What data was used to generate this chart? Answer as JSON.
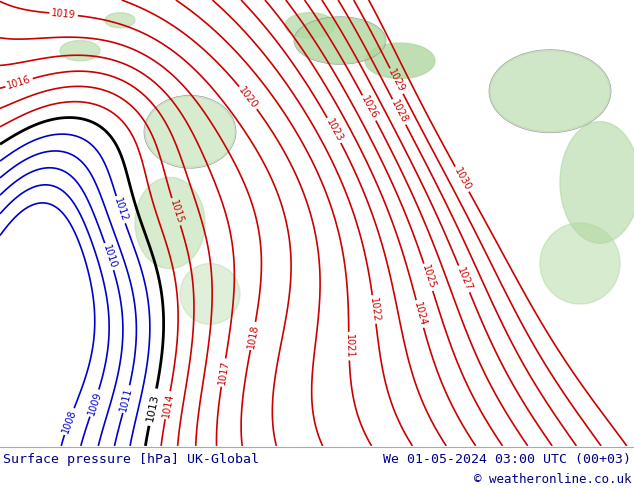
{
  "title_left": "Surface pressure [hPa] UK-Global",
  "title_right": "We 01-05-2024 03:00 UTC (00+03)",
  "copyright": "© weatheronline.co.uk",
  "bg_color": "#c8e8c0",
  "footer_bg": "#ffffff",
  "footer_text_color": "#00008B",
  "contour_color_red": "#cc0000",
  "contour_color_blue": "#0000cc",
  "contour_color_black": "#000000",
  "fig_width": 6.34,
  "fig_height": 4.9,
  "dpi": 100,
  "red_levels": [
    1014,
    1015,
    1016,
    1017,
    1018,
    1019,
    1020,
    1021,
    1022,
    1023,
    1024,
    1025,
    1026,
    1027,
    1028,
    1029,
    1030
  ],
  "black_levels": [
    1013
  ],
  "blue_levels": [
    1008,
    1009,
    1010,
    1011,
    1012
  ]
}
